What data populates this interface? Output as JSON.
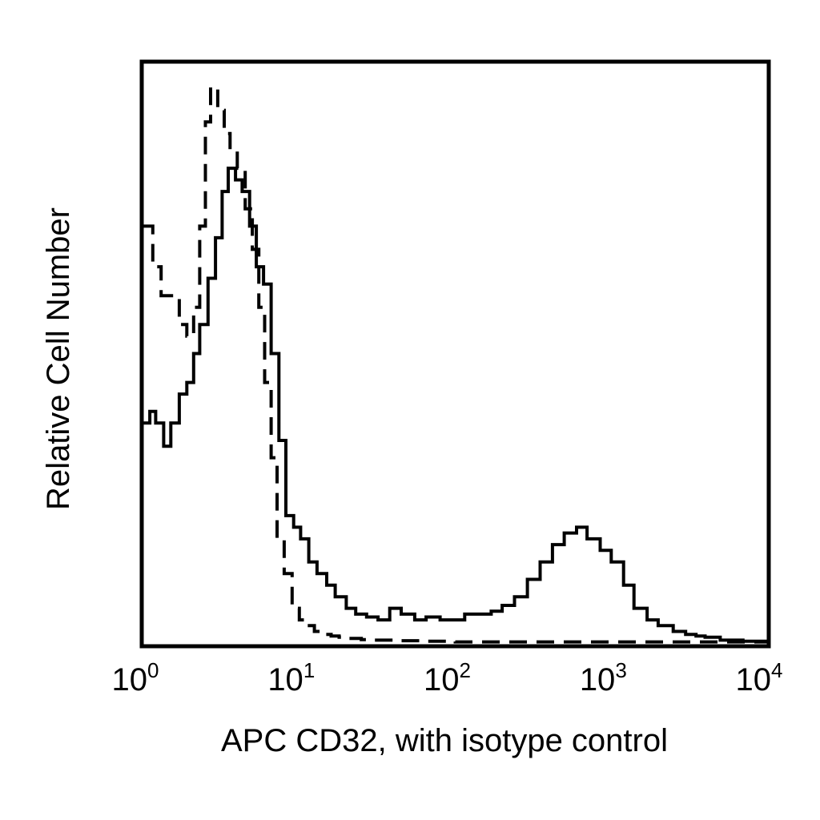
{
  "chart_data": {
    "type": "line",
    "title": "",
    "xlabel": "APC CD32, with isotype control",
    "ylabel": "Relative Cell Number",
    "x_scale": "log",
    "xlim": [
      1,
      10000
    ],
    "ylim": [
      0,
      100
    ],
    "x_ticks": [
      {
        "value": 1,
        "base": "10",
        "exp": "0"
      },
      {
        "value": 10,
        "base": "10",
        "exp": "1"
      },
      {
        "value": 100,
        "base": "10",
        "exp": "2"
      },
      {
        "value": 1000,
        "base": "10",
        "exp": "3"
      },
      {
        "value": 10000,
        "base": "10",
        "exp": "4"
      }
    ],
    "grid": false,
    "legend": "none",
    "series": [
      {
        "style": "solid",
        "color": "#000000",
        "x": [
          1.0,
          1.1,
          1.2,
          1.35,
          1.5,
          1.7,
          1.9,
          2.1,
          2.3,
          2.6,
          2.9,
          3.2,
          3.5,
          3.9,
          4.3,
          4.8,
          5.3,
          5.9,
          6.6,
          7.4,
          8.2,
          9.2,
          10.2,
          11.5,
          13,
          15,
          17,
          20,
          23,
          27,
          32,
          38,
          45,
          55,
          65,
          80,
          95,
          115,
          140,
          170,
          200,
          240,
          290,
          350,
          420,
          500,
          600,
          700,
          850,
          1000,
          1200,
          1400,
          1700,
          2000,
          2500,
          3000,
          3500,
          4000,
          5000,
          7000,
          10000
        ],
        "values": [
          38,
          40,
          38,
          34,
          38,
          43,
          45,
          50,
          55,
          63,
          70,
          78,
          82,
          80,
          78,
          72,
          65,
          62,
          50,
          35,
          22,
          20,
          18,
          14,
          12,
          10,
          8,
          6,
          5,
          4.5,
          4,
          6,
          5,
          4,
          4.5,
          4,
          4,
          5,
          5,
          5.5,
          6.5,
          8,
          11,
          14,
          17,
          19,
          20,
          18,
          16,
          14,
          10,
          6,
          4,
          3,
          2,
          1.5,
          1.2,
          1,
          0.5,
          0.3,
          0.2
        ]
      },
      {
        "style": "dashed",
        "color": "#000000",
        "x": [
          1.0,
          1.15,
          1.3,
          1.5,
          1.7,
          1.9,
          2.1,
          2.3,
          2.5,
          2.7,
          3.0,
          3.3,
          3.6,
          4.0,
          4.5,
          5.0,
          5.5,
          6.0,
          6.6,
          7.2,
          8.0,
          9.0,
          10.0,
          11.2,
          12.5,
          14,
          16,
          18,
          20,
          25,
          30,
          40,
          60,
          100,
          200,
          500,
          1000,
          3000,
          10000
        ],
        "values": [
          72,
          65,
          60,
          60,
          55,
          53,
          58,
          72,
          90,
          96,
          92,
          88,
          85,
          82,
          75,
          68,
          58,
          45,
          32,
          18,
          12,
          6,
          4,
          3,
          2,
          1.5,
          1.2,
          1,
          0.8,
          0.6,
          0.5,
          0.4,
          0.3,
          0.2,
          0.2,
          0.2,
          0.2,
          0.2,
          0.2
        ]
      }
    ]
  }
}
